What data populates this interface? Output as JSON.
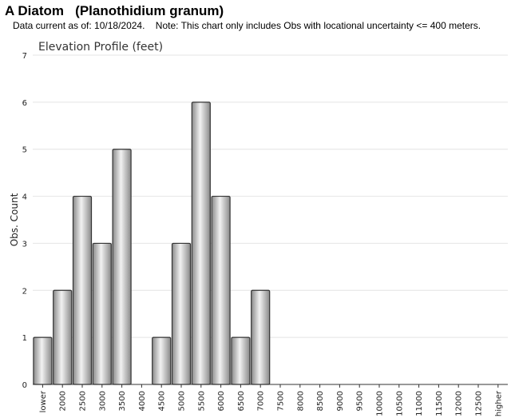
{
  "page": {
    "title": "A Diatom   (Planothidium granum)",
    "note": "Data current as of: 10/18/2024.    Note: This chart only includes Obs with locational uncertainty <= 400 meters."
  },
  "chart_data": {
    "type": "bar",
    "title": "Elevation Profile (feet)",
    "xlabel": "",
    "ylabel": "Obs. Count",
    "ylim": [
      0,
      7
    ],
    "yticks": [
      0,
      1,
      2,
      3,
      4,
      5,
      6,
      7
    ],
    "grid": true,
    "legend": "none",
    "categories": [
      "lower",
      "2000",
      "2500",
      "3000",
      "3500",
      "4000",
      "4500",
      "5000",
      "5500",
      "6000",
      "6500",
      "7000",
      "7500",
      "8000",
      "8500",
      "9000",
      "9500",
      "10000",
      "10500",
      "11000",
      "11500",
      "12000",
      "12500",
      "higher"
    ],
    "values": [
      1,
      2,
      4,
      3,
      5,
      0,
      1,
      3,
      6,
      4,
      1,
      2,
      0,
      0,
      0,
      0,
      0,
      0,
      0,
      0,
      0,
      0,
      0,
      0
    ],
    "colors": {
      "bar_light": "#f2f2f2",
      "bar_dark": "#8a8a8a",
      "bar_stroke": "#333333",
      "grid": "#e4e4e4",
      "axis": "#333333"
    }
  }
}
